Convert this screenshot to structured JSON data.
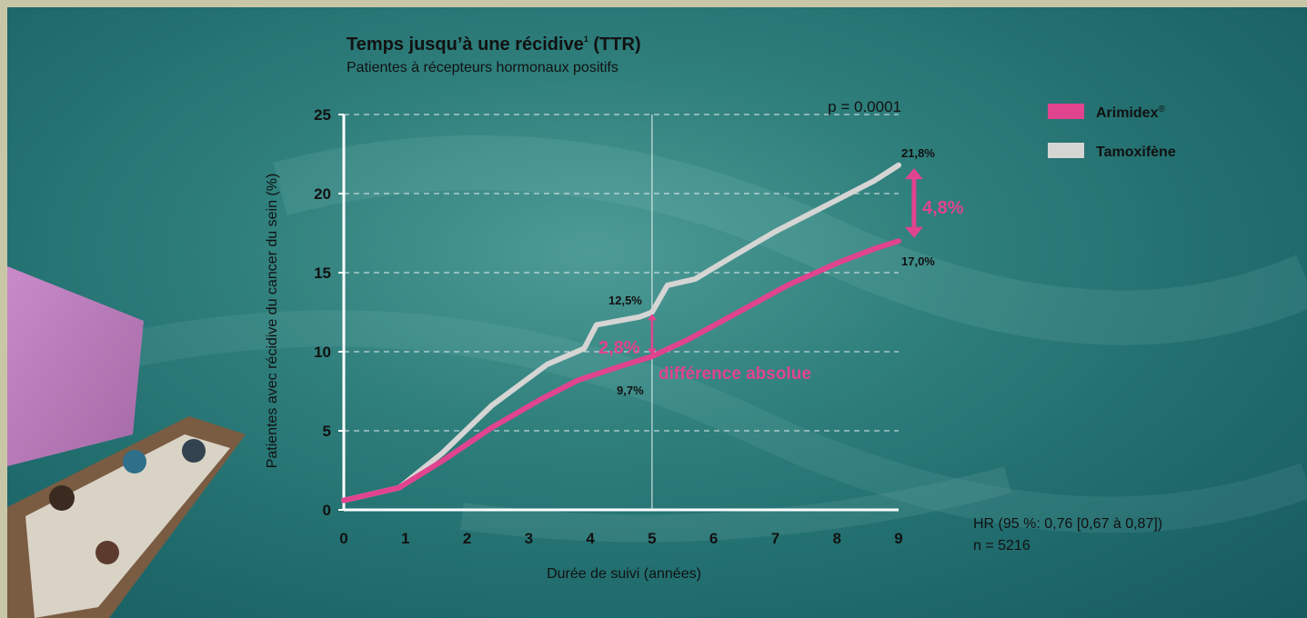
{
  "colors": {
    "arimidex": "#e0448f",
    "tamoxifene": "#d5d5d3",
    "annotation": "#e0448f"
  },
  "chart_data": {
    "type": "line",
    "title": "Temps jusqu’à une récidive",
    "title_superscript": "1",
    "title_suffix": " (TTR)",
    "subtitle": "Patientes à récepteurs hormonaux positifs",
    "xlabel": "Durée de suivi (années)",
    "ylabel": "Patientes avec récidive du cancer du sein (%)",
    "xlim": [
      0,
      9
    ],
    "ylim": [
      0,
      25
    ],
    "x_ticks": [
      "0",
      "1",
      "2",
      "3",
      "4",
      "5",
      "6",
      "7",
      "8",
      "9"
    ],
    "y_ticks": [
      "0",
      "5",
      "10",
      "15",
      "20",
      "25"
    ],
    "grid": "horizontal dashed",
    "legend_position": "top-right",
    "p_value": "p = 0.0001",
    "series": [
      {
        "name": "Arimidex",
        "name_suffix": "®",
        "x": [
          0,
          0.9,
          1.6,
          2.4,
          3.2,
          3.8,
          4.5,
          5.0,
          5.6,
          6.4,
          7.2,
          8.0,
          8.6,
          9.0
        ],
        "y": [
          0.6,
          1.4,
          3.1,
          5.2,
          7.0,
          8.2,
          9.1,
          9.7,
          10.8,
          12.5,
          14.2,
          15.6,
          16.5,
          17.0
        ]
      },
      {
        "name": "Tamoxifène",
        "x": [
          0,
          0.9,
          1.6,
          2.4,
          3.3,
          3.9,
          4.1,
          4.8,
          5.0,
          5.25,
          5.7,
          6.3,
          7.0,
          7.6,
          8.2,
          8.6,
          9.0
        ],
        "y": [
          0.6,
          1.4,
          3.6,
          6.6,
          9.2,
          10.2,
          11.7,
          12.2,
          12.5,
          14.2,
          14.6,
          16.0,
          17.6,
          18.8,
          20.0,
          20.8,
          21.8
        ]
      }
    ],
    "annotations": {
      "label_5y_tam": "12,5%",
      "label_5y_ari": "9,7%",
      "diff_5y": "2,8%",
      "diff_5y_caption": "différence absolue",
      "label_9y_tam": "21,8%",
      "label_9y_ari": "17,0%",
      "diff_9y": "4,8%"
    }
  },
  "footnote": {
    "hr": "HR (95 %: 0,76 [0,67 à 0,87])",
    "n": "n = 5216"
  }
}
